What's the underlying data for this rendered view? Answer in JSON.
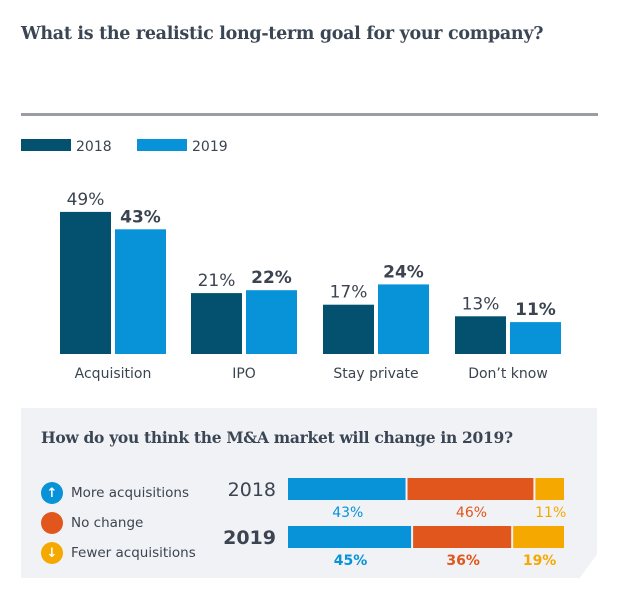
{
  "title": "What is the realistic long-term goal for your company?",
  "chart_data": [
    {
      "type": "bar",
      "title": "What is the realistic long-term goal for your company?",
      "categories": [
        "Acquisition",
        "IPO",
        "Stay private",
        "Don’t know"
      ],
      "series": [
        {
          "name": "2018",
          "values": [
            49,
            21,
            17,
            13
          ],
          "color": "#03506f",
          "labels": [
            "49%",
            "21%",
            "17%",
            "13%"
          ]
        },
        {
          "name": "2019",
          "values": [
            43,
            22,
            24,
            11
          ],
          "color": "#0893d9",
          "labels": [
            "43%",
            "22%",
            "24%",
            "11%"
          ]
        }
      ],
      "xlabel": "",
      "ylabel": "",
      "ylim": [
        0,
        50
      ],
      "grid": false,
      "legend": "top-left",
      "unit": "%"
    },
    {
      "type": "bar",
      "stacked": true,
      "orientation": "horizontal",
      "title": "How do you think the M&A market will change in 2019?",
      "categories": [
        "2018",
        "2019"
      ],
      "series": [
        {
          "name": "More acquisitions",
          "values": [
            43,
            45
          ],
          "color": "#0893d9",
          "icon": "arrow-up-icon",
          "labels": [
            "43%",
            "45%"
          ]
        },
        {
          "name": "No change",
          "values": [
            46,
            36
          ],
          "color": "#e0561c",
          "icon": "circle-icon",
          "labels": [
            "46%",
            "36%"
          ]
        },
        {
          "name": "Fewer acquisitions",
          "values": [
            11,
            19
          ],
          "color": "#f5a800",
          "icon": "arrow-down-icon",
          "labels": [
            "11%",
            "19%"
          ]
        }
      ],
      "xlim": [
        0,
        100
      ],
      "legend": "left",
      "unit": "%"
    }
  ],
  "panel": {
    "title": "How do you think the M&A market will change in 2019?",
    "legend": [
      {
        "label": "More acquisitions",
        "glyph": "↑",
        "color": "#0893d9"
      },
      {
        "label": "No change",
        "glyph": "",
        "color": "#e0561c"
      },
      {
        "label": "Fewer acquisitions",
        "glyph": "↓",
        "color": "#f5a800"
      }
    ]
  }
}
